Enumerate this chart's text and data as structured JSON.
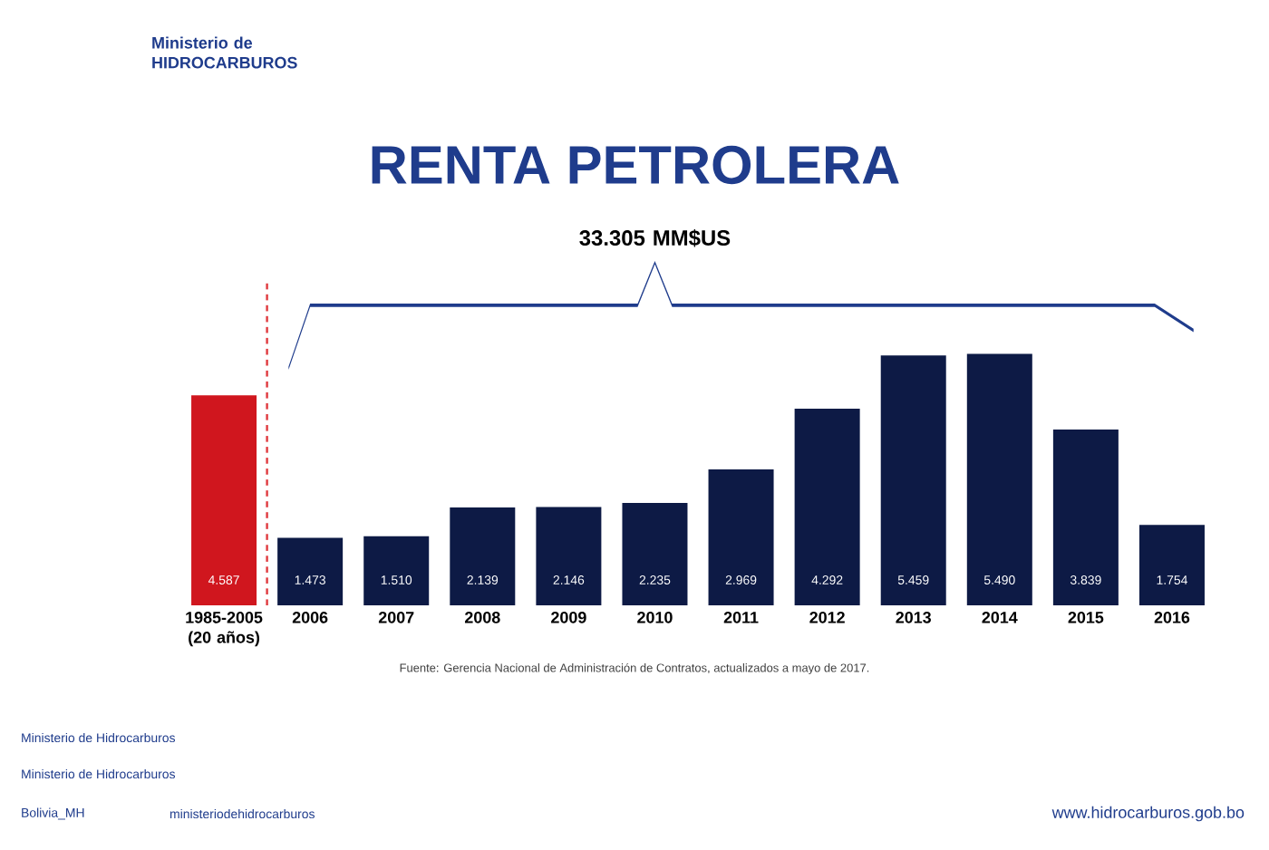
{
  "chart_data": {
    "type": "bar",
    "title": "RENTA PETROLERA",
    "categories": [
      "1985-2005 (20 años)",
      "2006",
      "2007",
      "2008",
      "2009",
      "2010",
      "2011",
      "2012",
      "2013",
      "2014",
      "2015",
      "2016"
    ],
    "values": [
      4587,
      1473,
      1510,
      2139,
      2146,
      2235,
      2969,
      4292,
      5459,
      5490,
      3839,
      1754
    ],
    "value_labels": [
      "4.587",
      "1.473",
      "1.510",
      "2.139",
      "2.146",
      "2.235",
      "2.969",
      "4.292",
      "5.459",
      "5.490",
      "3.839",
      "1.754"
    ],
    "colors": [
      "#d0161e",
      "#0d1a45",
      "#0d1a45",
      "#0d1a45",
      "#0d1a45",
      "#0d1a45",
      "#0d1a45",
      "#0d1a45",
      "#0d1a45",
      "#0d1a45",
      "#0d1a45",
      "#0d1a45"
    ],
    "annotations": [
      "33.305 MM$US",
      "Fuente: Gerencia Nacional de Administración de Contratos, actualizados a mayo de 2017.",
      "Ministerio de HIDROCARBUROS",
      "Ministerio de Hidrocarburos",
      "Ministerio de Hidrocarburos",
      "Bolivia_MH",
      "ministeriodehidrocarburos",
      "www.hidrocarburos.gob.bo"
    ]
  }
}
